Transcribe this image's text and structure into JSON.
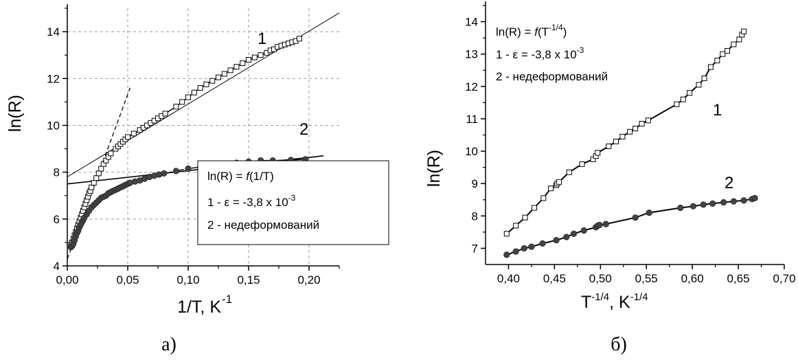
{
  "chart_data": [
    {
      "type": "scatter",
      "panel_label": "а)",
      "xlabel_main": "1/T, K",
      "xlabel_sup": "-1",
      "ylabel": "ln(R)",
      "xlim": [
        0,
        0.225
      ],
      "ylim": [
        4,
        15
      ],
      "x_ticks": [
        "0,00",
        "0,05",
        "0,10",
        "0,15",
        "0,20"
      ],
      "x_tick_values": [
        0,
        0.05,
        0.1,
        0.15,
        0.2
      ],
      "y_ticks": [
        "4",
        "6",
        "8",
        "10",
        "12",
        "14"
      ],
      "y_tick_values": [
        4,
        6,
        8,
        10,
        12,
        14
      ],
      "grid": true,
      "legend_title_pre": "ln(R) = ",
      "legend_title_f": "f",
      "legend_title_post": "(1/T)",
      "legend_line1_pre": "1 - ε = -3,8 x 10",
      "legend_line1_sup": "-3",
      "legend_line2": "2 - недеформований",
      "legend_position": "bottom-right",
      "curve_labels": [
        "1",
        "2"
      ],
      "series": [
        {
          "name": "1",
          "marker": "open-square",
          "x": [
            0.003,
            0.004,
            0.005,
            0.006,
            0.007,
            0.008,
            0.009,
            0.01,
            0.011,
            0.012,
            0.013,
            0.014,
            0.015,
            0.016,
            0.017,
            0.018,
            0.019,
            0.02,
            0.022,
            0.024,
            0.026,
            0.028,
            0.03,
            0.032,
            0.034,
            0.036,
            0.04,
            0.042,
            0.044,
            0.046,
            0.048,
            0.05,
            0.055,
            0.06,
            0.063,
            0.066,
            0.069,
            0.072,
            0.075,
            0.078,
            0.081,
            0.09,
            0.095,
            0.1,
            0.105,
            0.11,
            0.115,
            0.12,
            0.125,
            0.13,
            0.135,
            0.14,
            0.145,
            0.15,
            0.155,
            0.16,
            0.165,
            0.168,
            0.171,
            0.174,
            0.177,
            0.18,
            0.183,
            0.186,
            0.189,
            0.192
          ],
          "y": [
            4.9,
            5.0,
            5.15,
            5.3,
            5.45,
            5.6,
            5.75,
            5.9,
            6.05,
            6.2,
            6.35,
            6.5,
            6.65,
            6.8,
            6.95,
            7.1,
            7.2,
            7.35,
            7.55,
            7.75,
            7.95,
            8.15,
            8.35,
            8.5,
            8.65,
            8.8,
            9.0,
            9.1,
            9.2,
            9.3,
            9.4,
            9.5,
            9.65,
            9.8,
            9.9,
            10.0,
            10.1,
            10.2,
            10.3,
            10.4,
            10.5,
            10.8,
            11.0,
            11.2,
            11.4,
            11.6,
            11.75,
            11.9,
            12.05,
            12.2,
            12.35,
            12.5,
            12.65,
            12.8,
            12.9,
            13.0,
            13.1,
            13.2,
            13.25,
            13.35,
            13.4,
            13.45,
            13.5,
            13.55,
            13.6,
            13.7
          ]
        },
        {
          "name": "2",
          "marker": "filled-circle",
          "x": [
            0.003,
            0.004,
            0.005,
            0.006,
            0.007,
            0.008,
            0.009,
            0.01,
            0.011,
            0.012,
            0.013,
            0.014,
            0.016,
            0.018,
            0.02,
            0.022,
            0.024,
            0.026,
            0.028,
            0.03,
            0.032,
            0.034,
            0.036,
            0.038,
            0.04,
            0.042,
            0.044,
            0.046,
            0.048,
            0.05,
            0.052,
            0.056,
            0.06,
            0.064,
            0.068,
            0.072,
            0.076,
            0.08,
            0.09,
            0.1,
            0.11,
            0.12,
            0.13,
            0.14,
            0.15,
            0.16,
            0.17,
            0.185,
            0.197
          ],
          "y": [
            4.8,
            4.85,
            4.95,
            5.1,
            5.25,
            5.4,
            5.5,
            5.65,
            5.75,
            5.85,
            5.95,
            6.05,
            6.2,
            6.35,
            6.5,
            6.6,
            6.7,
            6.8,
            6.9,
            6.95,
            7.0,
            7.1,
            7.15,
            7.2,
            7.25,
            7.3,
            7.35,
            7.4,
            7.45,
            7.5,
            7.55,
            7.6,
            7.65,
            7.72,
            7.8,
            7.85,
            7.9,
            7.95,
            8.05,
            8.15,
            8.22,
            8.3,
            8.35,
            8.4,
            8.45,
            8.5,
            8.5,
            8.52,
            8.55
          ]
        }
      ],
      "fit_lines": [
        {
          "name": "1",
          "style": "solid-thin",
          "x": [
            0.0,
            0.225
          ],
          "y": [
            7.8,
            14.8
          ]
        },
        {
          "name": "1",
          "style": "dashed",
          "x": [
            0.0,
            0.052
          ],
          "y": [
            4.3,
            11.6
          ]
        },
        {
          "name": "2",
          "style": "solid",
          "x": [
            0.0,
            0.212
          ],
          "y": [
            7.5,
            8.7
          ]
        }
      ]
    },
    {
      "type": "scatter",
      "panel_label": "б)",
      "xlabel_main": "T",
      "xlabel_sup1": "-1/4",
      "xlabel_mid": ", K",
      "xlabel_sup2": "-1/4",
      "ylabel": "ln(R)",
      "xlim": [
        0.375,
        0.7
      ],
      "ylim": [
        6.5,
        14.5
      ],
      "x_ticks": [
        "0,40",
        "0,45",
        "0,50",
        "0,55",
        "0,60",
        "0,65",
        "0,70"
      ],
      "x_tick_values": [
        0.4,
        0.45,
        0.5,
        0.55,
        0.6,
        0.65,
        0.7
      ],
      "y_ticks": [
        "7",
        "8",
        "9",
        "10",
        "11",
        "12",
        "13",
        "14"
      ],
      "y_tick_values": [
        7,
        8,
        9,
        10,
        11,
        12,
        13,
        14
      ],
      "grid": false,
      "legend_title_pre": "ln(R) = ",
      "legend_title_f": "f",
      "legend_title_mid": "(T",
      "legend_title_sup": "-1/4",
      "legend_title_post": ")",
      "legend_line1_pre": "1 - ε = -3,8 x 10",
      "legend_line1_sup": "-3",
      "legend_line2": "2 - недеформований",
      "legend_position": "top-left",
      "curve_labels": [
        "1",
        "2"
      ],
      "series": [
        {
          "name": "1",
          "marker": "open-square",
          "x": [
            0.398,
            0.408,
            0.418,
            0.428,
            0.438,
            0.446,
            0.452,
            0.453,
            0.455,
            0.466,
            0.48,
            0.492,
            0.495,
            0.497,
            0.509,
            0.517,
            0.524,
            0.532,
            0.538,
            0.545,
            0.552,
            0.583,
            0.59,
            0.597,
            0.607,
            0.613,
            0.62,
            0.627,
            0.633,
            0.638,
            0.645,
            0.651,
            0.654,
            0.656
          ],
          "y": [
            7.45,
            7.7,
            7.95,
            8.25,
            8.55,
            8.85,
            8.95,
            9.0,
            9.05,
            9.35,
            9.6,
            9.75,
            9.85,
            9.95,
            10.15,
            10.3,
            10.45,
            10.6,
            10.7,
            10.85,
            10.95,
            11.45,
            11.6,
            11.8,
            12.05,
            12.25,
            12.6,
            12.8,
            13.0,
            13.1,
            13.3,
            13.45,
            13.6,
            13.7
          ]
        },
        {
          "name": "2",
          "marker": "filled-circle",
          "x": [
            0.398,
            0.408,
            0.417,
            0.425,
            0.437,
            0.452,
            0.463,
            0.471,
            0.482,
            0.495,
            0.497,
            0.499,
            0.506,
            0.538,
            0.553,
            0.587,
            0.601,
            0.612,
            0.622,
            0.634,
            0.645,
            0.656,
            0.665,
            0.668
          ],
          "y": [
            6.8,
            6.9,
            7.0,
            7.05,
            7.15,
            7.25,
            7.35,
            7.45,
            7.55,
            7.65,
            7.7,
            7.72,
            7.75,
            7.95,
            8.1,
            8.25,
            8.3,
            8.35,
            8.38,
            8.42,
            8.45,
            8.48,
            8.52,
            8.55
          ]
        }
      ]
    }
  ]
}
